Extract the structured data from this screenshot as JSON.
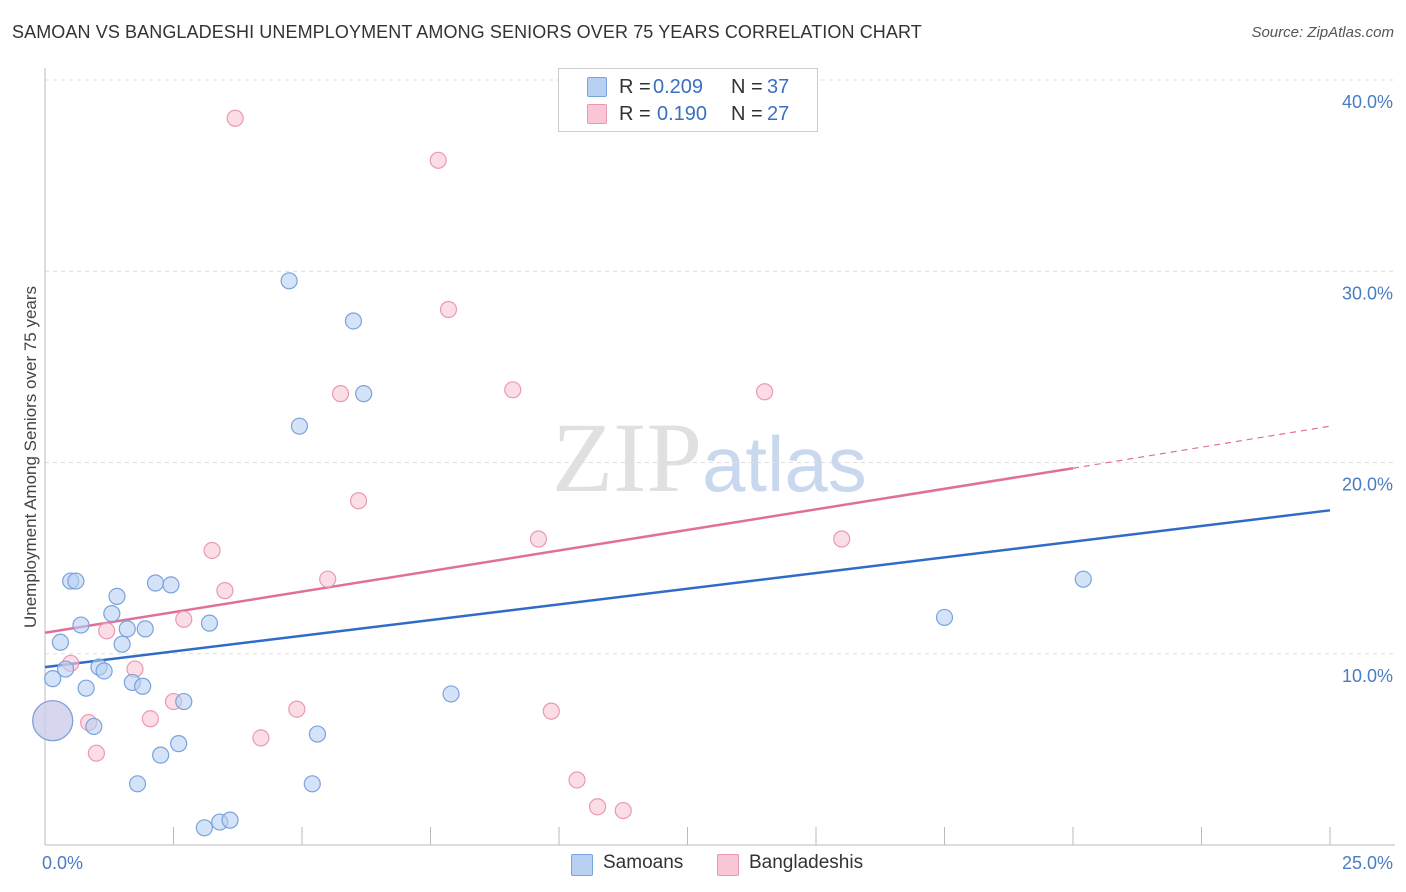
{
  "title": "SAMOAN VS BANGLADESHI UNEMPLOYMENT AMONG SENIORS OVER 75 YEARS CORRELATION CHART",
  "source": "Source: ZipAtlas.com",
  "watermark": {
    "zip": "ZIP",
    "atlas": "atlas"
  },
  "legend": {
    "r_label": "R =",
    "n_label": "N =",
    "samoans": {
      "r": "0.209",
      "n": "37"
    },
    "bangladeshis": {
      "r": "0.190",
      "n": "27"
    }
  },
  "bottom_legend": {
    "samoans": "Samoans",
    "bangladeshis": "Bangladeshis"
  },
  "chart_data": {
    "type": "scatter",
    "ylabel": "Unemployment Among Seniors over 75 years",
    "xlim": [
      0,
      25
    ],
    "ylim": [
      0,
      40
    ],
    "x_tick_labels": {
      "min": "0.0%",
      "max": "25.0%"
    },
    "y_tick_labels": [
      {
        "value": 10,
        "label": "10.0%"
      },
      {
        "value": 20,
        "label": "20.0%"
      },
      {
        "value": 30,
        "label": "30.0%"
      },
      {
        "value": 40,
        "label": "40.0%"
      }
    ],
    "colors": {
      "samoans_fill": "#b8d0f2",
      "samoans_stroke": "#7aa3dc",
      "samoans_line": "#2f6cc8",
      "bangladeshis_fill": "#f8c6d5",
      "bangladeshis_stroke": "#e99ab2",
      "bangladeshis_line": "#e0709a"
    },
    "series": [
      {
        "name": "Samoans",
        "points": [
          {
            "x": 0.15,
            "y": 6.5,
            "big": true
          },
          {
            "x": 0.15,
            "y": 8.7
          },
          {
            "x": 0.3,
            "y": 10.6
          },
          {
            "x": 0.4,
            "y": 9.2
          },
          {
            "x": 0.5,
            "y": 13.8
          },
          {
            "x": 0.6,
            "y": 13.8
          },
          {
            "x": 0.7,
            "y": 11.5
          },
          {
            "x": 0.8,
            "y": 8.2
          },
          {
            "x": 0.95,
            "y": 6.2
          },
          {
            "x": 1.05,
            "y": 9.3
          },
          {
            "x": 1.15,
            "y": 9.1
          },
          {
            "x": 1.3,
            "y": 12.1
          },
          {
            "x": 1.4,
            "y": 13.0
          },
          {
            "x": 1.5,
            "y": 10.5
          },
          {
            "x": 1.6,
            "y": 11.3
          },
          {
            "x": 1.7,
            "y": 8.5
          },
          {
            "x": 1.8,
            "y": 3.2
          },
          {
            "x": 1.9,
            "y": 8.3
          },
          {
            "x": 1.95,
            "y": 11.3
          },
          {
            "x": 2.15,
            "y": 13.7
          },
          {
            "x": 2.25,
            "y": 4.7
          },
          {
            "x": 2.45,
            "y": 13.6
          },
          {
            "x": 2.6,
            "y": 5.3
          },
          {
            "x": 2.7,
            "y": 7.5
          },
          {
            "x": 3.1,
            "y": 0.9
          },
          {
            "x": 3.2,
            "y": 11.6
          },
          {
            "x": 3.4,
            "y": 1.2
          },
          {
            "x": 3.6,
            "y": 1.3
          },
          {
            "x": 4.75,
            "y": 29.5
          },
          {
            "x": 4.95,
            "y": 21.9
          },
          {
            "x": 5.2,
            "y": 3.2
          },
          {
            "x": 5.3,
            "y": 5.8
          },
          {
            "x": 6.0,
            "y": 27.4
          },
          {
            "x": 6.2,
            "y": 23.6
          },
          {
            "x": 7.9,
            "y": 7.9
          },
          {
            "x": 17.5,
            "y": 11.9
          },
          {
            "x": 20.2,
            "y": 13.9
          }
        ],
        "trend": {
          "x0": 0,
          "y0": 9.3,
          "x1": 25,
          "y1": 17.5
        }
      },
      {
        "name": "Bangladeshis",
        "points": [
          {
            "x": 0.15,
            "y": 6.5,
            "big": true
          },
          {
            "x": 0.5,
            "y": 9.5
          },
          {
            "x": 0.85,
            "y": 6.4
          },
          {
            "x": 1.0,
            "y": 4.8
          },
          {
            "x": 1.2,
            "y": 11.2
          },
          {
            "x": 1.75,
            "y": 9.2
          },
          {
            "x": 2.05,
            "y": 6.6
          },
          {
            "x": 2.5,
            "y": 7.5
          },
          {
            "x": 2.7,
            "y": 11.8
          },
          {
            "x": 3.25,
            "y": 15.4
          },
          {
            "x": 3.5,
            "y": 13.3
          },
          {
            "x": 3.7,
            "y": 38.0
          },
          {
            "x": 4.2,
            "y": 5.6
          },
          {
            "x": 4.9,
            "y": 7.1
          },
          {
            "x": 5.5,
            "y": 13.9
          },
          {
            "x": 5.75,
            "y": 23.6
          },
          {
            "x": 6.1,
            "y": 18.0
          },
          {
            "x": 7.65,
            "y": 35.8
          },
          {
            "x": 7.85,
            "y": 28.0
          },
          {
            "x": 9.1,
            "y": 23.8
          },
          {
            "x": 9.6,
            "y": 16.0
          },
          {
            "x": 9.85,
            "y": 7.0
          },
          {
            "x": 10.35,
            "y": 3.4
          },
          {
            "x": 10.75,
            "y": 2.0
          },
          {
            "x": 11.25,
            "y": 1.8
          },
          {
            "x": 14.0,
            "y": 23.7
          },
          {
            "x": 15.5,
            "y": 16.0
          }
        ],
        "trend": {
          "x0": 0,
          "y0": 11.1,
          "x1": 20,
          "y1": 19.7,
          "dash_to_x": 25,
          "dash_to_y": 21.9
        }
      }
    ]
  }
}
